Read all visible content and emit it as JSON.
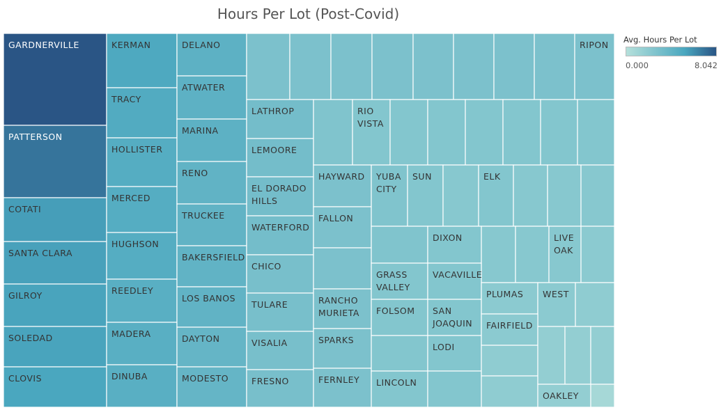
{
  "chart_data": {
    "type": "treemap",
    "title": "Hours Per Lot (Post-Covid)",
    "legend": {
      "title": "Avg. Hours Per Lot",
      "min_label": "0.000",
      "max_label": "8.042",
      "min": 0.0,
      "max": 8.042,
      "color_low": "#b5e0db",
      "color_mid": "#4aa7bf",
      "color_high": "#2a5585",
      "placement": "top-right"
    },
    "items": [
      {
        "name": "GARDNERVILLE",
        "value": 8.04
      },
      {
        "name": "PATTERSON",
        "value": 7.0
      },
      {
        "name": "COTATI",
        "value": 5.6
      },
      {
        "name": "SANTA CLARA",
        "value": 5.5
      },
      {
        "name": "GILROY",
        "value": 5.4
      },
      {
        "name": "SOLEDAD",
        "value": 5.4
      },
      {
        "name": "CLOVIS",
        "value": 5.3
      },
      {
        "name": "KERMAN",
        "value": 5.2
      },
      {
        "name": "TRACY",
        "value": 5.1
      },
      {
        "name": "HOLLISTER",
        "value": 5.0
      },
      {
        "name": "MERCED",
        "value": 5.0
      },
      {
        "name": "HUGHSON",
        "value": 5.0
      },
      {
        "name": "REEDLEY",
        "value": 4.9
      },
      {
        "name": "MADERA",
        "value": 4.9
      },
      {
        "name": "DINUBA",
        "value": 4.9
      },
      {
        "name": "DELANO",
        "value": 4.8
      },
      {
        "name": "ATWATER",
        "value": 4.8
      },
      {
        "name": "MARINA",
        "value": 4.8
      },
      {
        "name": "RENO",
        "value": 4.7
      },
      {
        "name": "TRUCKEE",
        "value": 4.7
      },
      {
        "name": "BAKERSFIELD",
        "value": 4.7
      },
      {
        "name": "LOS BANOS",
        "value": 4.7
      },
      {
        "name": "DAYTON",
        "value": 4.6
      },
      {
        "name": "MODESTO",
        "value": 4.6
      },
      {
        "name": "",
        "value": 4.0
      },
      {
        "name": "",
        "value": 4.0
      },
      {
        "name": "",
        "value": 4.0
      },
      {
        "name": "",
        "value": 4.0
      },
      {
        "name": "",
        "value": 4.0
      },
      {
        "name": "",
        "value": 4.0
      },
      {
        "name": "",
        "value": 4.0
      },
      {
        "name": "",
        "value": 4.0
      },
      {
        "name": "RIPON",
        "value": 4.0
      },
      {
        "name": "LATHROP",
        "value": 4.2
      },
      {
        "name": "LEMOORE",
        "value": 4.2
      },
      {
        "name": "EL DORADO HILLS",
        "value": 4.2
      },
      {
        "name": "WATERFORD",
        "value": 4.2
      },
      {
        "name": "CHICO",
        "value": 4.1
      },
      {
        "name": "TULARE",
        "value": 4.1
      },
      {
        "name": "VISALIA",
        "value": 4.1
      },
      {
        "name": "FRESNO",
        "value": 4.1
      },
      {
        "name": "",
        "value": 3.9
      },
      {
        "name": "RIO VISTA",
        "value": 3.8
      },
      {
        "name": "",
        "value": 3.8
      },
      {
        "name": "",
        "value": 3.8
      },
      {
        "name": "",
        "value": 3.8
      },
      {
        "name": "",
        "value": 3.8
      },
      {
        "name": "",
        "value": 3.8
      },
      {
        "name": "",
        "value": 3.8
      },
      {
        "name": "HAYWARD",
        "value": 4.0
      },
      {
        "name": "FALLON",
        "value": 4.0
      },
      {
        "name": "",
        "value": 4.0
      },
      {
        "name": "RANCHO MURIETA",
        "value": 4.0
      },
      {
        "name": "SPARKS",
        "value": 4.0
      },
      {
        "name": "FERNLEY",
        "value": 4.0
      },
      {
        "name": "YUBA CITY",
        "value": 3.9
      },
      {
        "name": "SUN",
        "value": 3.8
      },
      {
        "name": "",
        "value": 3.7
      },
      {
        "name": "ELK",
        "value": 3.8
      },
      {
        "name": "",
        "value": 3.7
      },
      {
        "name": "",
        "value": 3.7
      },
      {
        "name": "",
        "value": 3.7
      },
      {
        "name": "",
        "value": 3.9
      },
      {
        "name": "DIXON",
        "value": 3.8
      },
      {
        "name": "",
        "value": 3.7
      },
      {
        "name": "",
        "value": 3.7
      },
      {
        "name": "LIVE OAK",
        "value": 3.7
      },
      {
        "name": "",
        "value": 3.6
      },
      {
        "name": "GRASS VALLEY",
        "value": 3.8
      },
      {
        "name": "VACAVILLE",
        "value": 3.8
      },
      {
        "name": "FOLSOM",
        "value": 3.8
      },
      {
        "name": "SAN JOAQUIN",
        "value": 3.8
      },
      {
        "name": "",
        "value": 3.8
      },
      {
        "name": "LODI",
        "value": 3.8
      },
      {
        "name": "LINCOLN",
        "value": 3.8
      },
      {
        "name": "",
        "value": 3.8
      },
      {
        "name": "PLUMAS",
        "value": 3.6
      },
      {
        "name": "WEST",
        "value": 3.6
      },
      {
        "name": "",
        "value": 3.5
      },
      {
        "name": "FAIRFIELD",
        "value": 3.6
      },
      {
        "name": "",
        "value": 3.5
      },
      {
        "name": "",
        "value": 3.5
      },
      {
        "name": "",
        "value": 3.4
      },
      {
        "name": "",
        "value": 3.4
      },
      {
        "name": "",
        "value": 3.4
      },
      {
        "name": "OAKLEY",
        "value": 3.4
      },
      {
        "name": "",
        "value": 2.9
      }
    ]
  }
}
